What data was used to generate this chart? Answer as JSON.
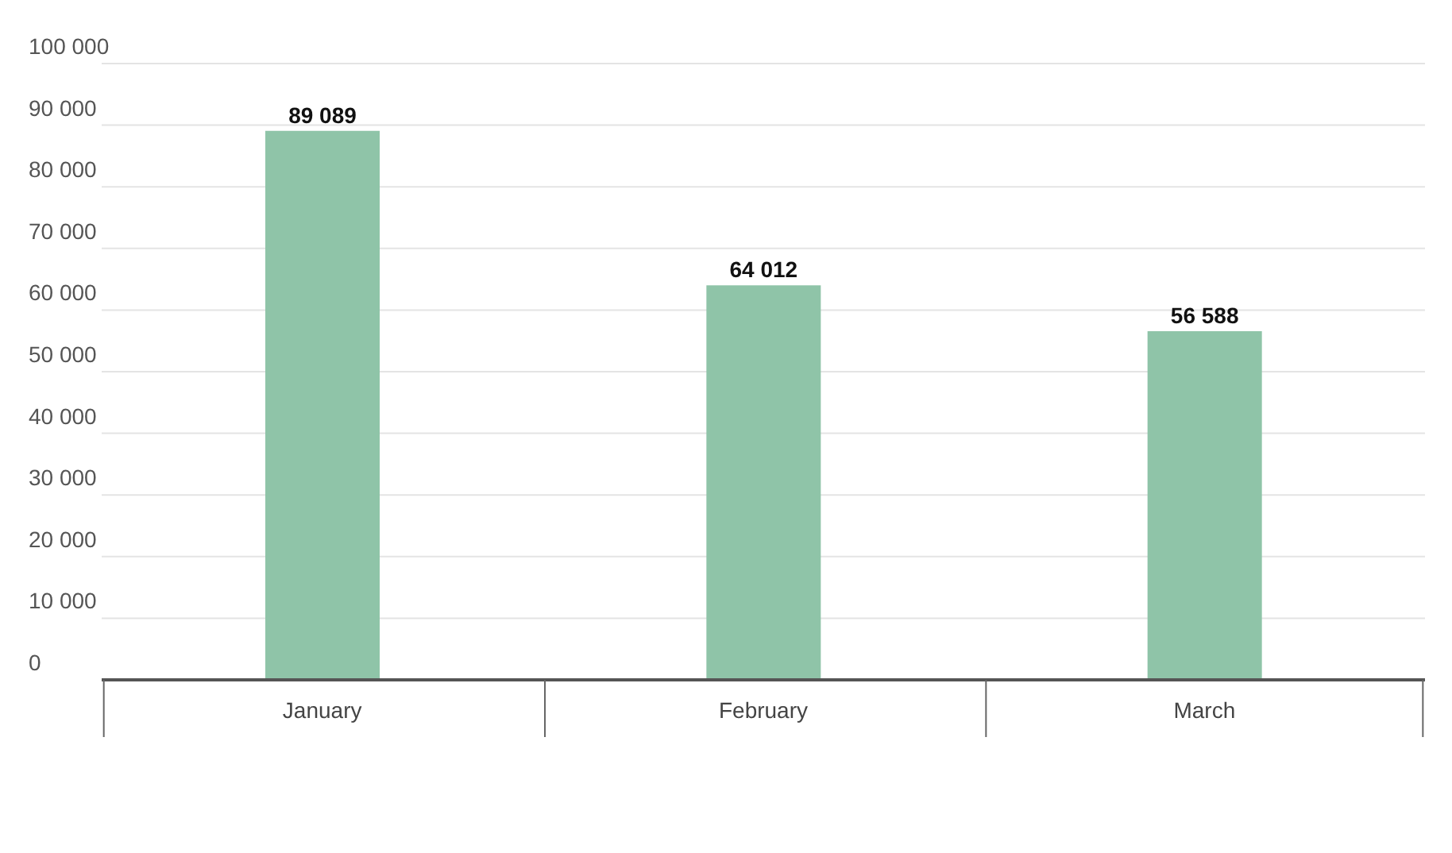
{
  "chart_data": {
    "type": "bar",
    "categories": [
      "January",
      "February",
      "March"
    ],
    "values": [
      89089,
      64012,
      56588
    ],
    "color": "#8fc4a8",
    "ylim": [
      0,
      100000
    ],
    "yticks": [
      {
        "value": 0,
        "label": "0"
      },
      {
        "value": 10000,
        "label": "10 000"
      },
      {
        "value": 20000,
        "label": "20 000"
      },
      {
        "value": 30000,
        "label": "30 000"
      },
      {
        "value": 40000,
        "label": "40 000"
      },
      {
        "value": 50000,
        "label": "50 000"
      },
      {
        "value": 60000,
        "label": "60 000"
      },
      {
        "value": 70000,
        "label": "70 000"
      },
      {
        "value": 80000,
        "label": "80 000"
      },
      {
        "value": 90000,
        "label": "90 000"
      },
      {
        "value": 100000,
        "label": "100 000"
      }
    ],
    "grid": "y",
    "data_labels": true
  }
}
